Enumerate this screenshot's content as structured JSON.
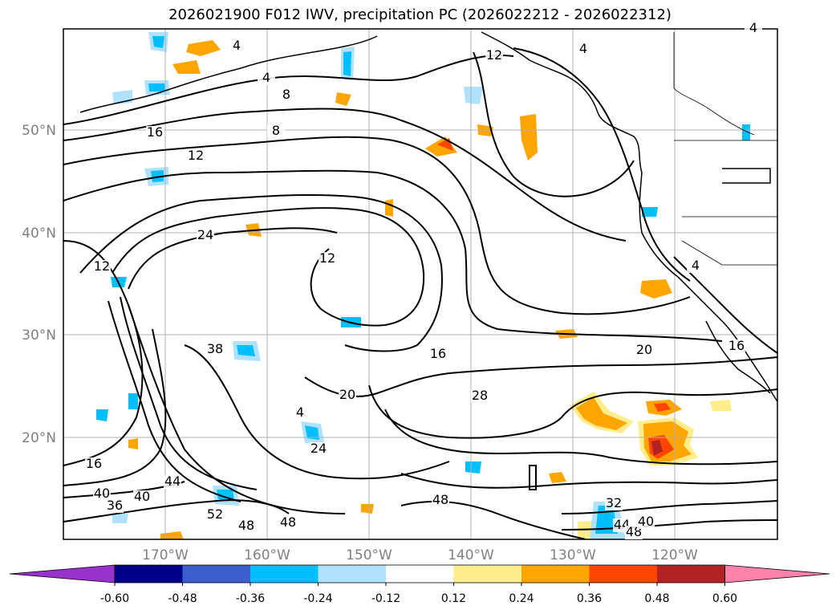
{
  "title": "2026021900 F012 IWV, precipitation PC (2026022212 - 2026022312)",
  "map": {
    "region": "North-East Pacific",
    "lon_range": [
      -180,
      -110
    ],
    "lat_range": [
      10,
      60
    ],
    "lat_ticks": [
      "50°N",
      "40°N",
      "30°N",
      "20°N"
    ],
    "lon_ticks": [
      "170°W",
      "160°W",
      "150°W",
      "140°W",
      "130°W",
      "120°W"
    ],
    "grid": true
  },
  "iwv_contour_labels": [
    "4",
    "4",
    "12",
    "4",
    "4",
    "8",
    "8",
    "16",
    "12",
    "24",
    "12",
    "12",
    "4",
    "16",
    "20",
    "16",
    "38",
    "20",
    "4",
    "28",
    "24",
    "16",
    "44",
    "40",
    "40",
    "36",
    "52",
    "48",
    "48",
    "48",
    "32",
    "44",
    "48",
    "40"
  ],
  "colorbar": {
    "ticks": [
      "-0.60",
      "-0.48",
      "-0.36",
      "-0.24",
      "-0.12",
      "0.12",
      "0.24",
      "0.36",
      "0.48",
      "0.60"
    ],
    "colors": [
      "#9932CC",
      "#00008B",
      "#3A5FCD",
      "#00BFFF",
      "#B0E2FF",
      "#FFFFFF",
      "#FFEC8B",
      "#FFA500",
      "#FF4500",
      "#B22222",
      "#FF82AB"
    ],
    "extend": "both"
  }
}
